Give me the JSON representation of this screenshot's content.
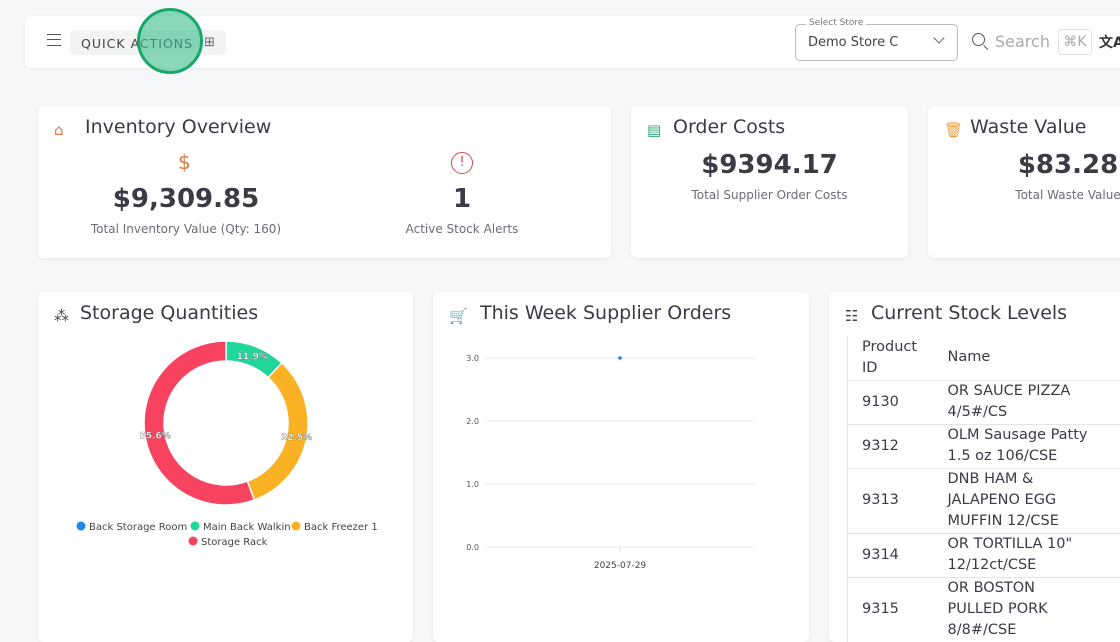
{
  "topbar": {
    "quick_actions": "QUICK ACTIONS",
    "store_label": "Select Store",
    "store_value": "Demo Store C",
    "search_placeholder": "Search",
    "shortcut": "⌘K"
  },
  "inventory": {
    "title": "Inventory Overview",
    "value": "$9,309.85",
    "value_label": "Total Inventory Value (Qty: 160)",
    "alerts": "1",
    "alerts_label": "Active Stock Alerts"
  },
  "orders": {
    "title": "Order Costs",
    "value": "$9394.17",
    "label": "Total Supplier Order Costs"
  },
  "waste": {
    "title": "Waste Value",
    "value": "$83.28",
    "label": "Total Waste Value"
  },
  "storage": {
    "title": "Storage Quantities"
  },
  "supplier": {
    "title": "This Week Supplier Orders"
  },
  "stock": {
    "title": "Current Stock Levels",
    "headers": [
      "Product ID",
      "Name"
    ],
    "rows": [
      {
        "id": "9130",
        "name": "OR SAUCE PIZZA 4/5#/CS"
      },
      {
        "id": "9312",
        "name": "OLM Sausage Patty 1.5 oz 106/CSE"
      },
      {
        "id": "9313",
        "name": "DNB HAM & JALAPENO EGG MUFFIN 12/CSE"
      },
      {
        "id": "9314",
        "name": "OR TORTILLA 10\" 12/12ct/CSE"
      },
      {
        "id": "9315",
        "name": "OR BOSTON PULLED PORK 8/8#/CSE"
      }
    ]
  },
  "chart_data": [
    {
      "type": "pie",
      "title": "Storage Quantities",
      "labels": [
        "Back Storage Room",
        "Main Back Walkin",
        "Back Freezer 1",
        "Storage Rack"
      ],
      "values": [
        0,
        11.9,
        32.5,
        55.6
      ],
      "colors": [
        "#1e88e5",
        "#20d69a",
        "#fbb124",
        "#f7435f"
      ],
      "legend": "bottom"
    },
    {
      "type": "line",
      "title": "This Week Supplier Orders",
      "x": [
        "2025-07-29"
      ],
      "y": [
        3
      ],
      "ylim": [
        0,
        3
      ],
      "yticks": [
        "0.0",
        "1.0",
        "2.0",
        "3.0"
      ],
      "color": "#1e88e5",
      "grid": true
    }
  ]
}
